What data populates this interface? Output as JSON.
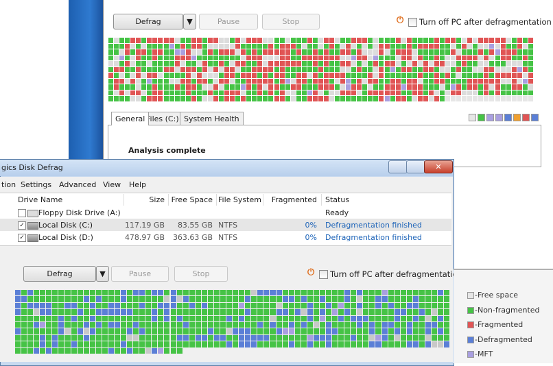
{
  "back_window": {
    "buttons": {
      "defrag": "Defrag",
      "pause": "Pause",
      "stop": "Stop"
    },
    "shutdown_option": "Turn off PC after defragmentation",
    "tabs": [
      "General",
      "Files (C:)",
      "System Health"
    ],
    "status_text": "Analysis complete"
  },
  "front_window": {
    "title": "gics Disk Defrag",
    "menu": [
      "tion",
      "Settings",
      "Advanced",
      "View",
      "Help"
    ],
    "table": {
      "headers": [
        "Drive Name",
        "Size",
        "Free Space",
        "File System",
        "Fragmented",
        "Status"
      ],
      "rows": [
        {
          "name": "Floppy Disk Drive (A:)",
          "status": "Ready"
        },
        {
          "name": "Local Disk (C:)",
          "size": "117.19 GB",
          "free_space": "83.55 GB",
          "file_system": "NTFS",
          "fragmented": "0%",
          "status": "Defragmentation finished"
        },
        {
          "name": "Local Disk (D:)",
          "size": "478.97 GB",
          "free_space": "363.63 GB",
          "file_system": "NTFS",
          "fragmented": "0%",
          "status": "Defragmentation finished"
        }
      ]
    },
    "buttons": {
      "defrag": "Defrag",
      "pause": "Pause",
      "stop": "Stop"
    },
    "shutdown_option": "Turn off PC after defragmentation"
  },
  "legend": [
    "-Free space",
    "-Non-fragmented",
    "-Fragmented",
    "-Defragmented",
    "-MFT"
  ]
}
